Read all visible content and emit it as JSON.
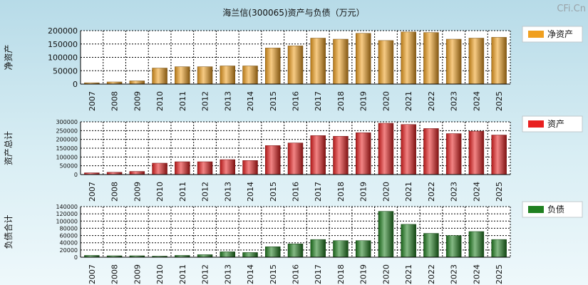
{
  "watermark": "CFi.Cn",
  "chart_data": {
    "type": "bar",
    "title": "海兰信(300065)资产与负债（万元）",
    "categories": [
      "2007",
      "2008",
      "2009",
      "2010",
      "2011",
      "2012",
      "2013",
      "2014",
      "2015",
      "2016",
      "2017",
      "2018",
      "2019",
      "2020",
      "2021",
      "2022",
      "2023",
      "2024",
      "2025"
    ],
    "panels": [
      {
        "key": "net_assets",
        "ylabel": "净资产",
        "legend": "净资产",
        "color": "#f0a020",
        "ylim": [
          0,
          200000
        ],
        "yticks": [
          0,
          50000,
          100000,
          150000,
          200000
        ],
        "values": [
          5000,
          8000,
          12000,
          60000,
          65000,
          65000,
          68000,
          68000,
          135000,
          143000,
          172000,
          168000,
          190000,
          163000,
          195000,
          193000,
          168000,
          172000,
          175000
        ]
      },
      {
        "key": "total_assets",
        "ylabel": "资产总计",
        "legend": "资产",
        "color": "#e82020",
        "ylim": [
          0,
          300000
        ],
        "yticks": [
          0,
          50000,
          100000,
          150000,
          200000,
          250000,
          300000
        ],
        "values": [
          10000,
          13000,
          18000,
          65000,
          73000,
          73000,
          85000,
          80000,
          165000,
          180000,
          222000,
          218000,
          238000,
          292000,
          285000,
          262000,
          233000,
          247000,
          225000
        ]
      },
      {
        "key": "total_liabilities",
        "ylabel": "负债合计",
        "legend": "负债",
        "color": "#208020",
        "ylim": [
          0,
          140000
        ],
        "yticks": [
          0,
          20000,
          40000,
          60000,
          80000,
          100000,
          120000,
          140000
        ],
        "values": [
          5000,
          4000,
          4000,
          3000,
          5000,
          7000,
          15000,
          13000,
          29000,
          37000,
          49000,
          46000,
          46000,
          127000,
          91000,
          66000,
          60000,
          71000,
          49000
        ]
      }
    ]
  }
}
